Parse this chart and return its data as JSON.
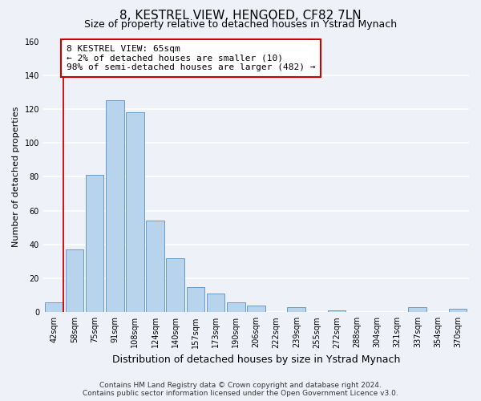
{
  "title": "8, KESTREL VIEW, HENGOED, CF82 7LN",
  "subtitle": "Size of property relative to detached houses in Ystrad Mynach",
  "xlabel": "Distribution of detached houses by size in Ystrad Mynach",
  "ylabel": "Number of detached properties",
  "bar_labels": [
    "42sqm",
    "58sqm",
    "75sqm",
    "91sqm",
    "108sqm",
    "124sqm",
    "140sqm",
    "157sqm",
    "173sqm",
    "190sqm",
    "206sqm",
    "222sqm",
    "239sqm",
    "255sqm",
    "272sqm",
    "288sqm",
    "304sqm",
    "321sqm",
    "337sqm",
    "354sqm",
    "370sqm"
  ],
  "bar_values": [
    6,
    37,
    81,
    125,
    118,
    54,
    32,
    15,
    11,
    6,
    4,
    0,
    3,
    0,
    1,
    0,
    0,
    0,
    3,
    0,
    2
  ],
  "bar_color": "#b8d4ed",
  "bar_edge_color": "#6699cc",
  "highlight_line_color": "#cc0000",
  "annotation_line1": "8 KESTREL VIEW: 65sqm",
  "annotation_line2": "← 2% of detached houses are smaller (10)",
  "annotation_line3": "98% of semi-detached houses are larger (482) →",
  "annotation_box_color": "#cc0000",
  "ylim": [
    0,
    160
  ],
  "yticks": [
    0,
    20,
    40,
    60,
    80,
    100,
    120,
    140,
    160
  ],
  "footnote": "Contains HM Land Registry data © Crown copyright and database right 2024.\nContains public sector information licensed under the Open Government Licence v3.0.",
  "background_color": "#eef2f8",
  "grid_color": "white",
  "title_fontsize": 11,
  "subtitle_fontsize": 9,
  "xlabel_fontsize": 9,
  "ylabel_fontsize": 8,
  "tick_fontsize": 7,
  "annotation_fontsize": 8,
  "footnote_fontsize": 6.5
}
